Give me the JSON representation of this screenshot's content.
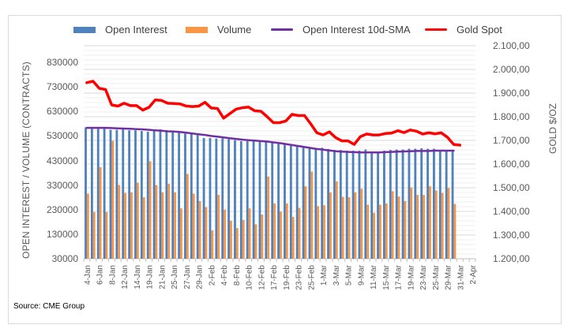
{
  "chart_data": {
    "type": "bar+line",
    "title": "",
    "source": "Source: CME Group",
    "legend": {
      "placement": "top",
      "entries": [
        {
          "name": "Open Interest",
          "kind": "bar",
          "color": "#4f81bd"
        },
        {
          "name": "Volume",
          "kind": "bar",
          "color": "#f79646"
        },
        {
          "name": "Open Interest 10d-SMA",
          "kind": "line",
          "color": "#7030a0"
        },
        {
          "name": "Gold Spot",
          "kind": "line",
          "color": "#ff0000"
        }
      ]
    },
    "ylabel_left": "OPEN INTEREST / VOLUME (CONTRACTS)",
    "ylabel_right": "GOLD $/OZ",
    "ylim_left": [
      30000,
      830000
    ],
    "yticks_left": [
      "830000",
      "730000",
      "630000",
      "530000",
      "430000",
      "330000",
      "230000",
      "130000",
      "30000"
    ],
    "ylim_right": [
      1200,
      2100
    ],
    "yticks_right": [
      "2.100,00",
      "2.000,00",
      "1.900,00",
      "1.800,00",
      "1.700,00",
      "1.600,00",
      "1.500,00",
      "1.400,00",
      "1.300,00",
      "1.200,00"
    ],
    "grid": true,
    "categories": [
      "4-Jan",
      "5-Jan",
      "6-Jan",
      "7-Jan",
      "8-Jan",
      "11-Jan",
      "12-Jan",
      "13-Jan",
      "14-Jan",
      "15-Jan",
      "19-Jan",
      "20-Jan",
      "21-Jan",
      "22-Jan",
      "25-Jan",
      "26-Jan",
      "27-Jan",
      "28-Jan",
      "29-Jan",
      "1-Feb",
      "2-Feb",
      "3-Feb",
      "4-Feb",
      "5-Feb",
      "8-Feb",
      "9-Feb",
      "10-Feb",
      "11-Feb",
      "12-Feb",
      "16-Feb",
      "17-Feb",
      "18-Feb",
      "19-Feb",
      "22-Feb",
      "23-Feb",
      "24-Feb",
      "25-Feb",
      "26-Feb",
      "1-Mar",
      "2-Mar",
      "3-Mar",
      "4-Mar",
      "5-Mar",
      "8-Mar",
      "9-Mar",
      "10-Mar",
      "11-Mar",
      "12-Mar",
      "15-Mar",
      "16-Mar",
      "17-Mar",
      "18-Mar",
      "19-Mar",
      "22-Mar",
      "23-Mar",
      "24-Mar",
      "25-Mar",
      "26-Mar",
      "29-Mar",
      "30-Mar",
      "31-Mar",
      "1-Apr",
      "2-Apr"
    ],
    "tick_labels": [
      "4-Jan",
      "6-Jan",
      "8-Jan",
      "12-Jan",
      "14-Jan",
      "19-Jan",
      "21-Jan",
      "25-Jan",
      "27-Jan",
      "29-Jan",
      "2-Feb",
      "4-Feb",
      "8-Feb",
      "10-Feb",
      "12-Feb",
      "17-Feb",
      "19-Feb",
      "23-Feb",
      "25-Feb",
      "1-Mar",
      "3-Mar",
      "5-Mar",
      "9-Mar",
      "11-Mar",
      "15-Mar",
      "17-Mar",
      "19-Mar",
      "23-Mar",
      "25-Mar",
      "29-Mar",
      "31-Mar",
      "2-Apr"
    ],
    "series": [
      {
        "name": "Open Interest",
        "axis": "left",
        "type": "bar",
        "values": [
          565000,
          565000,
          565000,
          565000,
          555000,
          555000,
          557000,
          553000,
          553000,
          550000,
          547000,
          557000,
          557000,
          553000,
          550000,
          545000,
          540000,
          540000,
          537000,
          522000,
          522000,
          520000,
          520000,
          517000,
          513000,
          509000,
          509000,
          509000,
          507000,
          505000,
          502000,
          500000,
          495000,
          490000,
          490000,
          487000,
          480000,
          480000,
          482000,
          477000,
          473000,
          473000,
          470000,
          470000,
          470000,
          475000,
          467000,
          467000,
          470000,
          473000,
          475000,
          475000,
          478000,
          478000,
          480000,
          478000,
          478000,
          473000,
          473000,
          473000,
          null,
          null,
          null
        ]
      },
      {
        "name": "Volume",
        "axis": "left",
        "type": "bar",
        "values": [
          295000,
          220000,
          403000,
          220000,
          510000,
          330000,
          298000,
          300000,
          340000,
          280000,
          427000,
          330000,
          300000,
          335000,
          300000,
          235000,
          375000,
          295000,
          265000,
          240000,
          145000,
          290000,
          230000,
          185000,
          155000,
          188000,
          235000,
          170000,
          210000,
          365000,
          255000,
          222000,
          255000,
          200000,
          237000,
          325000,
          385000,
          244000,
          248000,
          300000,
          345000,
          282000,
          280000,
          300000,
          315000,
          250000,
          217000,
          250000,
          255000,
          305000,
          283000,
          265000,
          320000,
          290000,
          290000,
          325000,
          308000,
          298000,
          318000,
          253000,
          null,
          null,
          null
        ]
      },
      {
        "name": "Open Interest 10d-SMA",
        "axis": "left",
        "type": "line",
        "values": [
          563000,
          563000,
          563000,
          563000,
          562000,
          561000,
          560000,
          559000,
          558000,
          557000,
          555000,
          553000,
          551000,
          549000,
          548000,
          546000,
          543000,
          540000,
          537000,
          534000,
          530000,
          527000,
          524000,
          521000,
          518000,
          515000,
          513000,
          511000,
          509000,
          507000,
          504000,
          501000,
          497000,
          493000,
          489000,
          485000,
          481000,
          477000,
          474000,
          471000,
          468000,
          466000,
          465000,
          464000,
          463000,
          463000,
          463000,
          463000,
          464000,
          465000,
          466000,
          467000,
          468000,
          469000,
          469000,
          469000,
          470000,
          470000,
          470000,
          470000,
          null,
          null,
          null
        ]
      },
      {
        "name": "Gold Spot",
        "axis": "right",
        "type": "line",
        "values": [
          1944,
          1950,
          1920,
          1915,
          1850,
          1845,
          1857,
          1847,
          1847,
          1828,
          1840,
          1871,
          1869,
          1857,
          1856,
          1854,
          1845,
          1843,
          1845,
          1861,
          1837,
          1835,
          1794,
          1813,
          1832,
          1838,
          1841,
          1825,
          1823,
          1800,
          1775,
          1775,
          1782,
          1810,
          1805,
          1805,
          1770,
          1732,
          1723,
          1736,
          1712,
          1698,
          1698,
          1683,
          1716,
          1727,
          1723,
          1723,
          1729,
          1731,
          1741,
          1733,
          1744,
          1739,
          1727,
          1732,
          1728,
          1732,
          1713,
          1683,
          1680,
          null,
          null
        ]
      }
    ]
  }
}
